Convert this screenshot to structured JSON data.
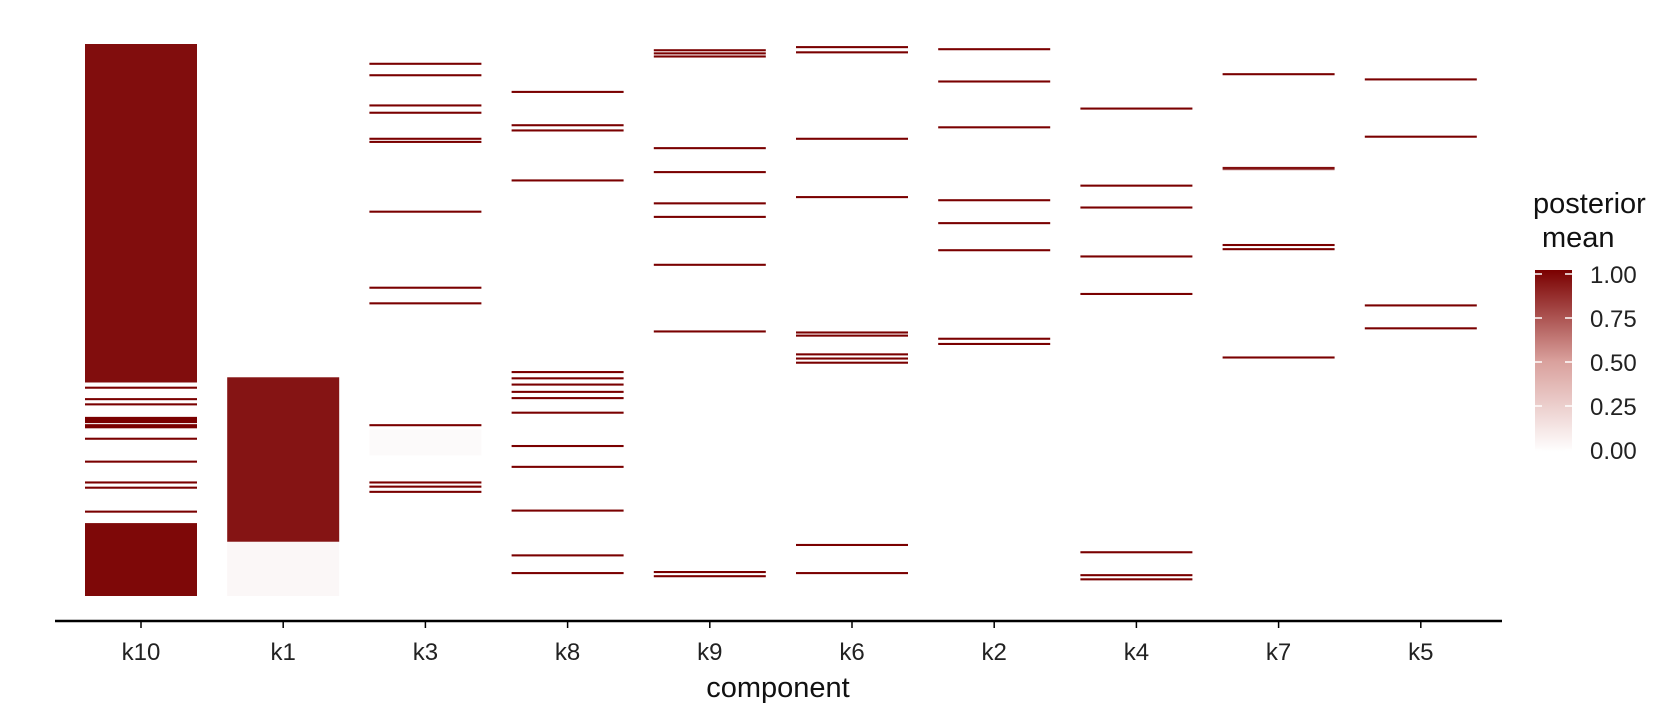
{
  "chart_data": {
    "type": "heatmap",
    "xlabel": "component",
    "ylabel": "",
    "categories": [
      "k10",
      "k1",
      "k3",
      "k8",
      "k9",
      "k6",
      "k2",
      "k4",
      "k7",
      "k5"
    ],
    "row_count": 530,
    "value_range": [
      0,
      1
    ],
    "legend": {
      "title_lines": [
        "posterior",
        "mean"
      ],
      "ticks": [
        "1.00",
        "0.75",
        "0.50",
        "0.25",
        "0.00"
      ],
      "tick_values": [
        1.0,
        0.75,
        0.5,
        0.25,
        0.0
      ],
      "placement": "right",
      "color_low": "#ffffff",
      "color_high": "#7a0000"
    },
    "grid": false,
    "columns": [
      {
        "name": "k10",
        "runs": [
          [
            0,
            325,
            0.95
          ],
          [
            329,
            331,
            1
          ],
          [
            340,
            342,
            1
          ],
          [
            345,
            347,
            1
          ],
          [
            358,
            364,
            1
          ],
          [
            365,
            369,
            1
          ],
          [
            378,
            380,
            1
          ],
          [
            400,
            402,
            1
          ],
          [
            420,
            422,
            1
          ],
          [
            425,
            427,
            1
          ],
          [
            448,
            450,
            1
          ],
          [
            460,
            530,
            0.97
          ]
        ]
      },
      {
        "name": "k1",
        "runs": [
          [
            320,
            478,
            0.92
          ],
          [
            478,
            530,
            0.03
          ]
        ]
      },
      {
        "name": "k3",
        "runs": [
          [
            18,
            20,
            1
          ],
          [
            29,
            31,
            1
          ],
          [
            58,
            60,
            1
          ],
          [
            65,
            67,
            1
          ],
          [
            90,
            92,
            1
          ],
          [
            93,
            95,
            1
          ],
          [
            160,
            162,
            1
          ],
          [
            233,
            235,
            1
          ],
          [
            248,
            250,
            1
          ],
          [
            365,
            367,
            1
          ],
          [
            370,
            395,
            0.02
          ],
          [
            420,
            422,
            1
          ],
          [
            424,
            426,
            1
          ],
          [
            429,
            431,
            1
          ]
        ]
      },
      {
        "name": "k8",
        "runs": [
          [
            45,
            47,
            1
          ],
          [
            77,
            79,
            1
          ],
          [
            82,
            84,
            1
          ],
          [
            130,
            132,
            1
          ],
          [
            314,
            316,
            1
          ],
          [
            320,
            322,
            1
          ],
          [
            326,
            328,
            1
          ],
          [
            333,
            335,
            1
          ],
          [
            339,
            341,
            1
          ],
          [
            353,
            355,
            1
          ],
          [
            385,
            387,
            1
          ],
          [
            405,
            407,
            1
          ],
          [
            447,
            449,
            1
          ],
          [
            490,
            492,
            1
          ],
          [
            507,
            509,
            1
          ]
        ]
      },
      {
        "name": "k9",
        "runs": [
          [
            5,
            7,
            1
          ],
          [
            8,
            10,
            1
          ],
          [
            11,
            13,
            1
          ],
          [
            99,
            101,
            1
          ],
          [
            122,
            124,
            1
          ],
          [
            152,
            154,
            1
          ],
          [
            165,
            167,
            1
          ],
          [
            211,
            213,
            1
          ],
          [
            275,
            277,
            1
          ],
          [
            506,
            508,
            1
          ],
          [
            510,
            512,
            1
          ]
        ]
      },
      {
        "name": "k6",
        "runs": [
          [
            2,
            4,
            1
          ],
          [
            7,
            9,
            1
          ],
          [
            90,
            92,
            1
          ],
          [
            146,
            148,
            1
          ],
          [
            276,
            278,
            1
          ],
          [
            279,
            281,
            1
          ],
          [
            297,
            299,
            1
          ],
          [
            301,
            303,
            1
          ],
          [
            305,
            307,
            1
          ],
          [
            480,
            482,
            1
          ],
          [
            507,
            509,
            1
          ]
        ]
      },
      {
        "name": "k2",
        "runs": [
          [
            4,
            6,
            1
          ],
          [
            35,
            37,
            1
          ],
          [
            79,
            81,
            1
          ],
          [
            149,
            151,
            1
          ],
          [
            171,
            173,
            1
          ],
          [
            197,
            199,
            1
          ],
          [
            282,
            284,
            1
          ],
          [
            287,
            289,
            1
          ]
        ]
      },
      {
        "name": "k4",
        "runs": [
          [
            61,
            63,
            1
          ],
          [
            135,
            137,
            1
          ],
          [
            156,
            158,
            1
          ],
          [
            203,
            205,
            1
          ],
          [
            239,
            241,
            1
          ],
          [
            487,
            489,
            1
          ],
          [
            509,
            511,
            1
          ],
          [
            513,
            515,
            1
          ]
        ]
      },
      {
        "name": "k7",
        "runs": [
          [
            28,
            30,
            1
          ],
          [
            118,
            120,
            0.95
          ],
          [
            120,
            121,
            0.7
          ],
          [
            192,
            194,
            1
          ],
          [
            196,
            198,
            1
          ],
          [
            300,
            302,
            1
          ]
        ]
      },
      {
        "name": "k5",
        "runs": [
          [
            33,
            35,
            1
          ],
          [
            88,
            90,
            1
          ],
          [
            250,
            252,
            1
          ],
          [
            272,
            274,
            1
          ]
        ]
      }
    ]
  }
}
